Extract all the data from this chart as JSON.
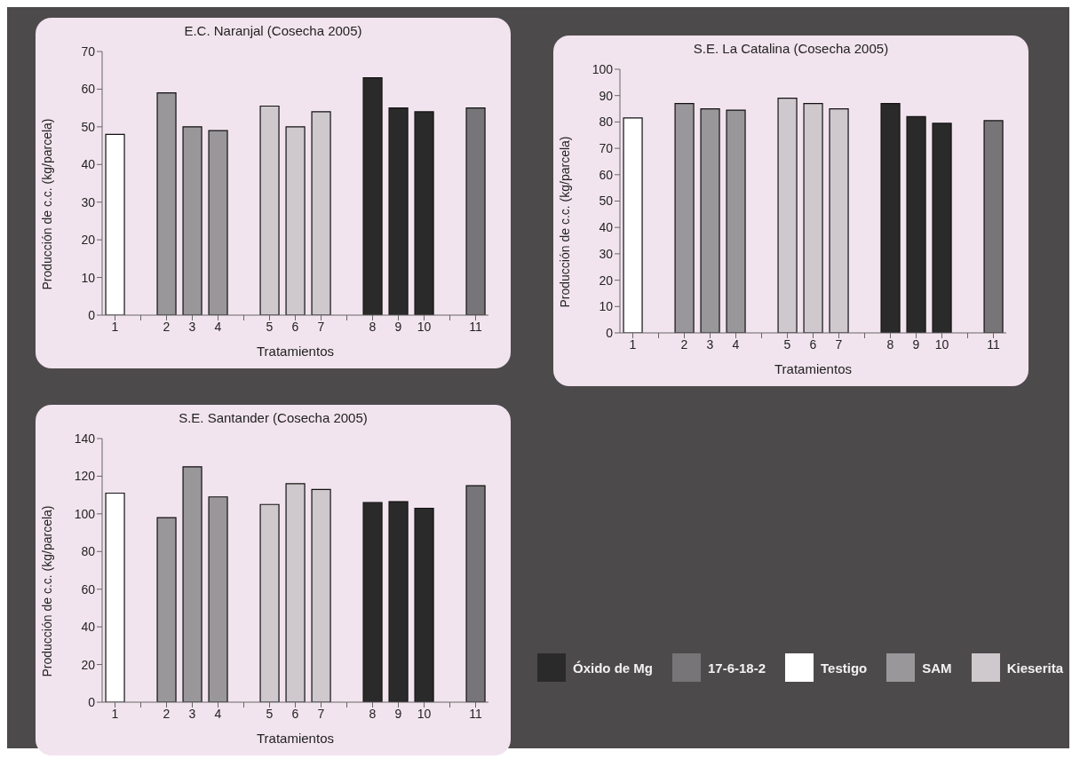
{
  "chart_data": [
    {
      "type": "bar",
      "title": "E.C. Naranjal (Cosecha 2005)",
      "xlabel": "Tratamientos",
      "ylabel": "Producción de c.c. (kg/parcela)",
      "categories": [
        "1",
        null,
        "2",
        "3",
        "4",
        null,
        "5",
        "6",
        "7",
        null,
        "8",
        "9",
        "10",
        null,
        "11"
      ],
      "series": [
        {
          "color": "#2b2a2b",
          "values": [
            null,
            null,
            null,
            null,
            null,
            null,
            null,
            null,
            null,
            null,
            63,
            55,
            54,
            null,
            null
          ]
        },
        {
          "color": "#777577",
          "values": [
            null,
            null,
            null,
            null,
            null,
            null,
            null,
            null,
            null,
            null,
            null,
            null,
            null,
            null,
            55
          ]
        },
        {
          "color": "#ffffff",
          "values": [
            48,
            null,
            null,
            null,
            null,
            null,
            null,
            null,
            null,
            null,
            null,
            null,
            null,
            null,
            null
          ]
        },
        {
          "color": "#9a979a",
          "values": [
            null,
            null,
            59,
            50,
            49,
            null,
            null,
            null,
            null,
            null,
            null,
            null,
            null,
            null,
            null
          ]
        },
        {
          "color": "#cfc9ce",
          "values": [
            null,
            null,
            null,
            null,
            null,
            null,
            55.5,
            50,
            54,
            null,
            null,
            null,
            null,
            null,
            null
          ]
        }
      ],
      "ylim": [
        0,
        70
      ],
      "yticks": [
        0,
        10,
        20,
        30,
        40,
        50,
        60,
        70
      ]
    },
    {
      "type": "bar",
      "title": "S.E. La Catalina (Cosecha 2005)",
      "xlabel": "Tratamientos",
      "ylabel": "Producción de c.c. (kg/parcela)",
      "categories": [
        "1",
        null,
        "2",
        "3",
        "4",
        null,
        "5",
        "6",
        "7",
        null,
        "8",
        "9",
        "10",
        null,
        "11"
      ],
      "series": [
        {
          "color": "#2b2a2b",
          "values": [
            null,
            null,
            null,
            null,
            null,
            null,
            null,
            null,
            null,
            null,
            87,
            82,
            79.5,
            null,
            null
          ]
        },
        {
          "color": "#777577",
          "values": [
            null,
            null,
            null,
            null,
            null,
            null,
            null,
            null,
            null,
            null,
            null,
            null,
            null,
            null,
            80.5
          ]
        },
        {
          "color": "#ffffff",
          "values": [
            81.5,
            null,
            null,
            null,
            null,
            null,
            null,
            null,
            null,
            null,
            null,
            null,
            null,
            null,
            null
          ]
        },
        {
          "color": "#9a979a",
          "values": [
            null,
            null,
            87,
            85,
            84.5,
            null,
            null,
            null,
            null,
            null,
            null,
            null,
            null,
            null,
            null
          ]
        },
        {
          "color": "#cfc9ce",
          "values": [
            null,
            null,
            null,
            null,
            null,
            null,
            89,
            87,
            85,
            null,
            null,
            null,
            null,
            null,
            null
          ]
        }
      ],
      "ylim": [
        0,
        100
      ],
      "yticks": [
        0,
        10,
        20,
        30,
        40,
        50,
        60,
        70,
        80,
        90,
        100
      ]
    },
    {
      "type": "bar",
      "title": "S.E. Santander (Cosecha 2005)",
      "xlabel": "Tratamientos",
      "ylabel": "Producción de c.c. (kg/parcela)",
      "categories": [
        "1",
        null,
        "2",
        "3",
        "4",
        null,
        "5",
        "6",
        "7",
        null,
        "8",
        "9",
        "10",
        null,
        "11"
      ],
      "series": [
        {
          "name": "Óxido de Mg",
          "color": "#2b2a2b",
          "values": [
            null,
            null,
            null,
            null,
            null,
            null,
            null,
            null,
            null,
            null,
            106,
            106.5,
            103,
            null,
            null
          ]
        },
        {
          "name": "17-6-18-2",
          "color": "#777577",
          "values": [
            null,
            null,
            null,
            null,
            null,
            null,
            null,
            null,
            null,
            null,
            null,
            null,
            null,
            null,
            115
          ]
        },
        {
          "name": "Testigo",
          "color": "#ffffff",
          "values": [
            111,
            null,
            null,
            null,
            null,
            null,
            null,
            null,
            null,
            null,
            null,
            null,
            null,
            null,
            null
          ]
        },
        {
          "name": "SAM",
          "color": "#9a979a",
          "values": [
            null,
            null,
            98,
            125,
            109,
            null,
            null,
            null,
            null,
            null,
            null,
            null,
            null,
            null,
            null
          ]
        },
        {
          "name": "Kieserita",
          "color": "#cfc9ce",
          "values": [
            null,
            null,
            null,
            null,
            null,
            null,
            105,
            116,
            113,
            null,
            null,
            null,
            null,
            null,
            null
          ]
        }
      ],
      "ylim": [
        0,
        140
      ],
      "yticks": [
        0,
        20,
        40,
        60,
        80,
        100,
        120,
        140
      ],
      "legend": "right"
    }
  ]
}
